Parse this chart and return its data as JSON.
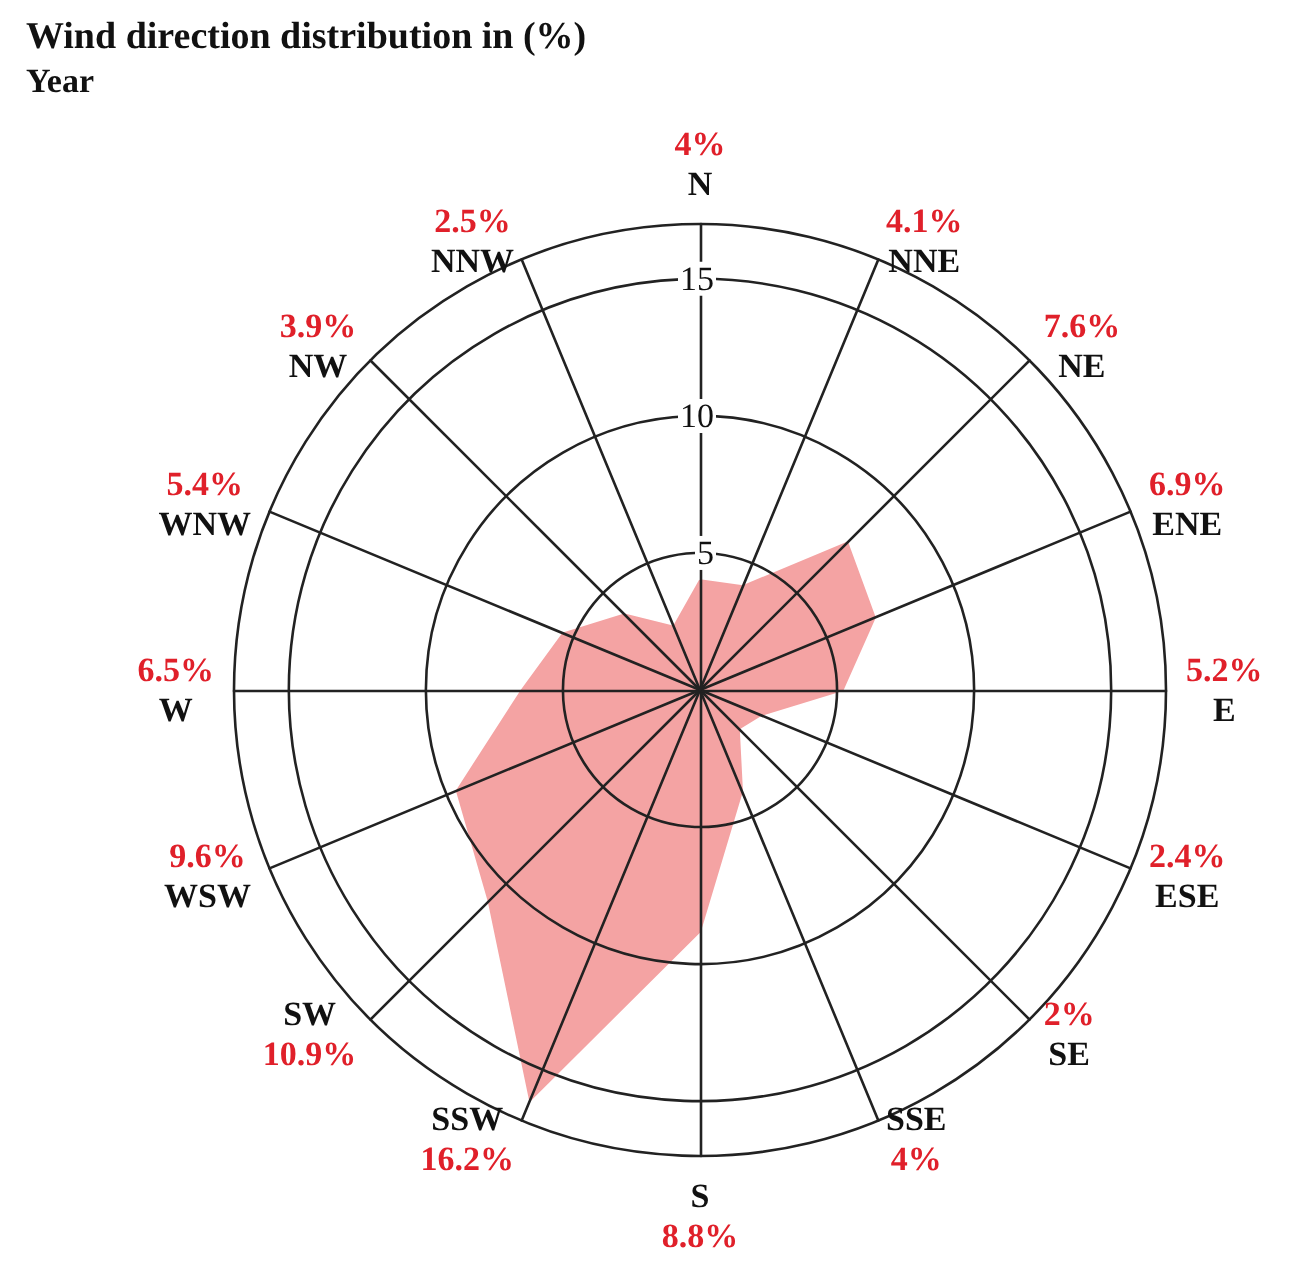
{
  "chart_data": {
    "type": "radar",
    "title": "Wind direction distribution in (%)",
    "subtitle": "Year",
    "categories": [
      "N",
      "NNE",
      "NE",
      "ENE",
      "E",
      "ESE",
      "SE",
      "SSE",
      "S",
      "SSW",
      "SW",
      "WSW",
      "W",
      "WNW",
      "NW",
      "NNW"
    ],
    "series": [
      {
        "color": "#f4a3a3",
        "values": [
          4,
          4.1,
          7.6,
          6.9,
          5.2,
          2.4,
          2,
          4,
          8.8,
          16.2,
          10.9,
          9.6,
          6.5,
          5.4,
          3.9,
          2.5
        ]
      }
    ],
    "annotations": [
      "4%",
      "4.1%",
      "7.6%",
      "6.9%",
      "5.2%",
      "2.4%",
      "2%",
      "4%",
      "8.8%",
      "16.2%",
      "10.9%",
      "9.6%",
      "6.5%",
      "5.4%",
      "3.9%",
      "2.5%"
    ],
    "ylim": [
      0,
      17
    ],
    "yticks": [
      5,
      10,
      15
    ],
    "grid": true,
    "marker": "none"
  }
}
